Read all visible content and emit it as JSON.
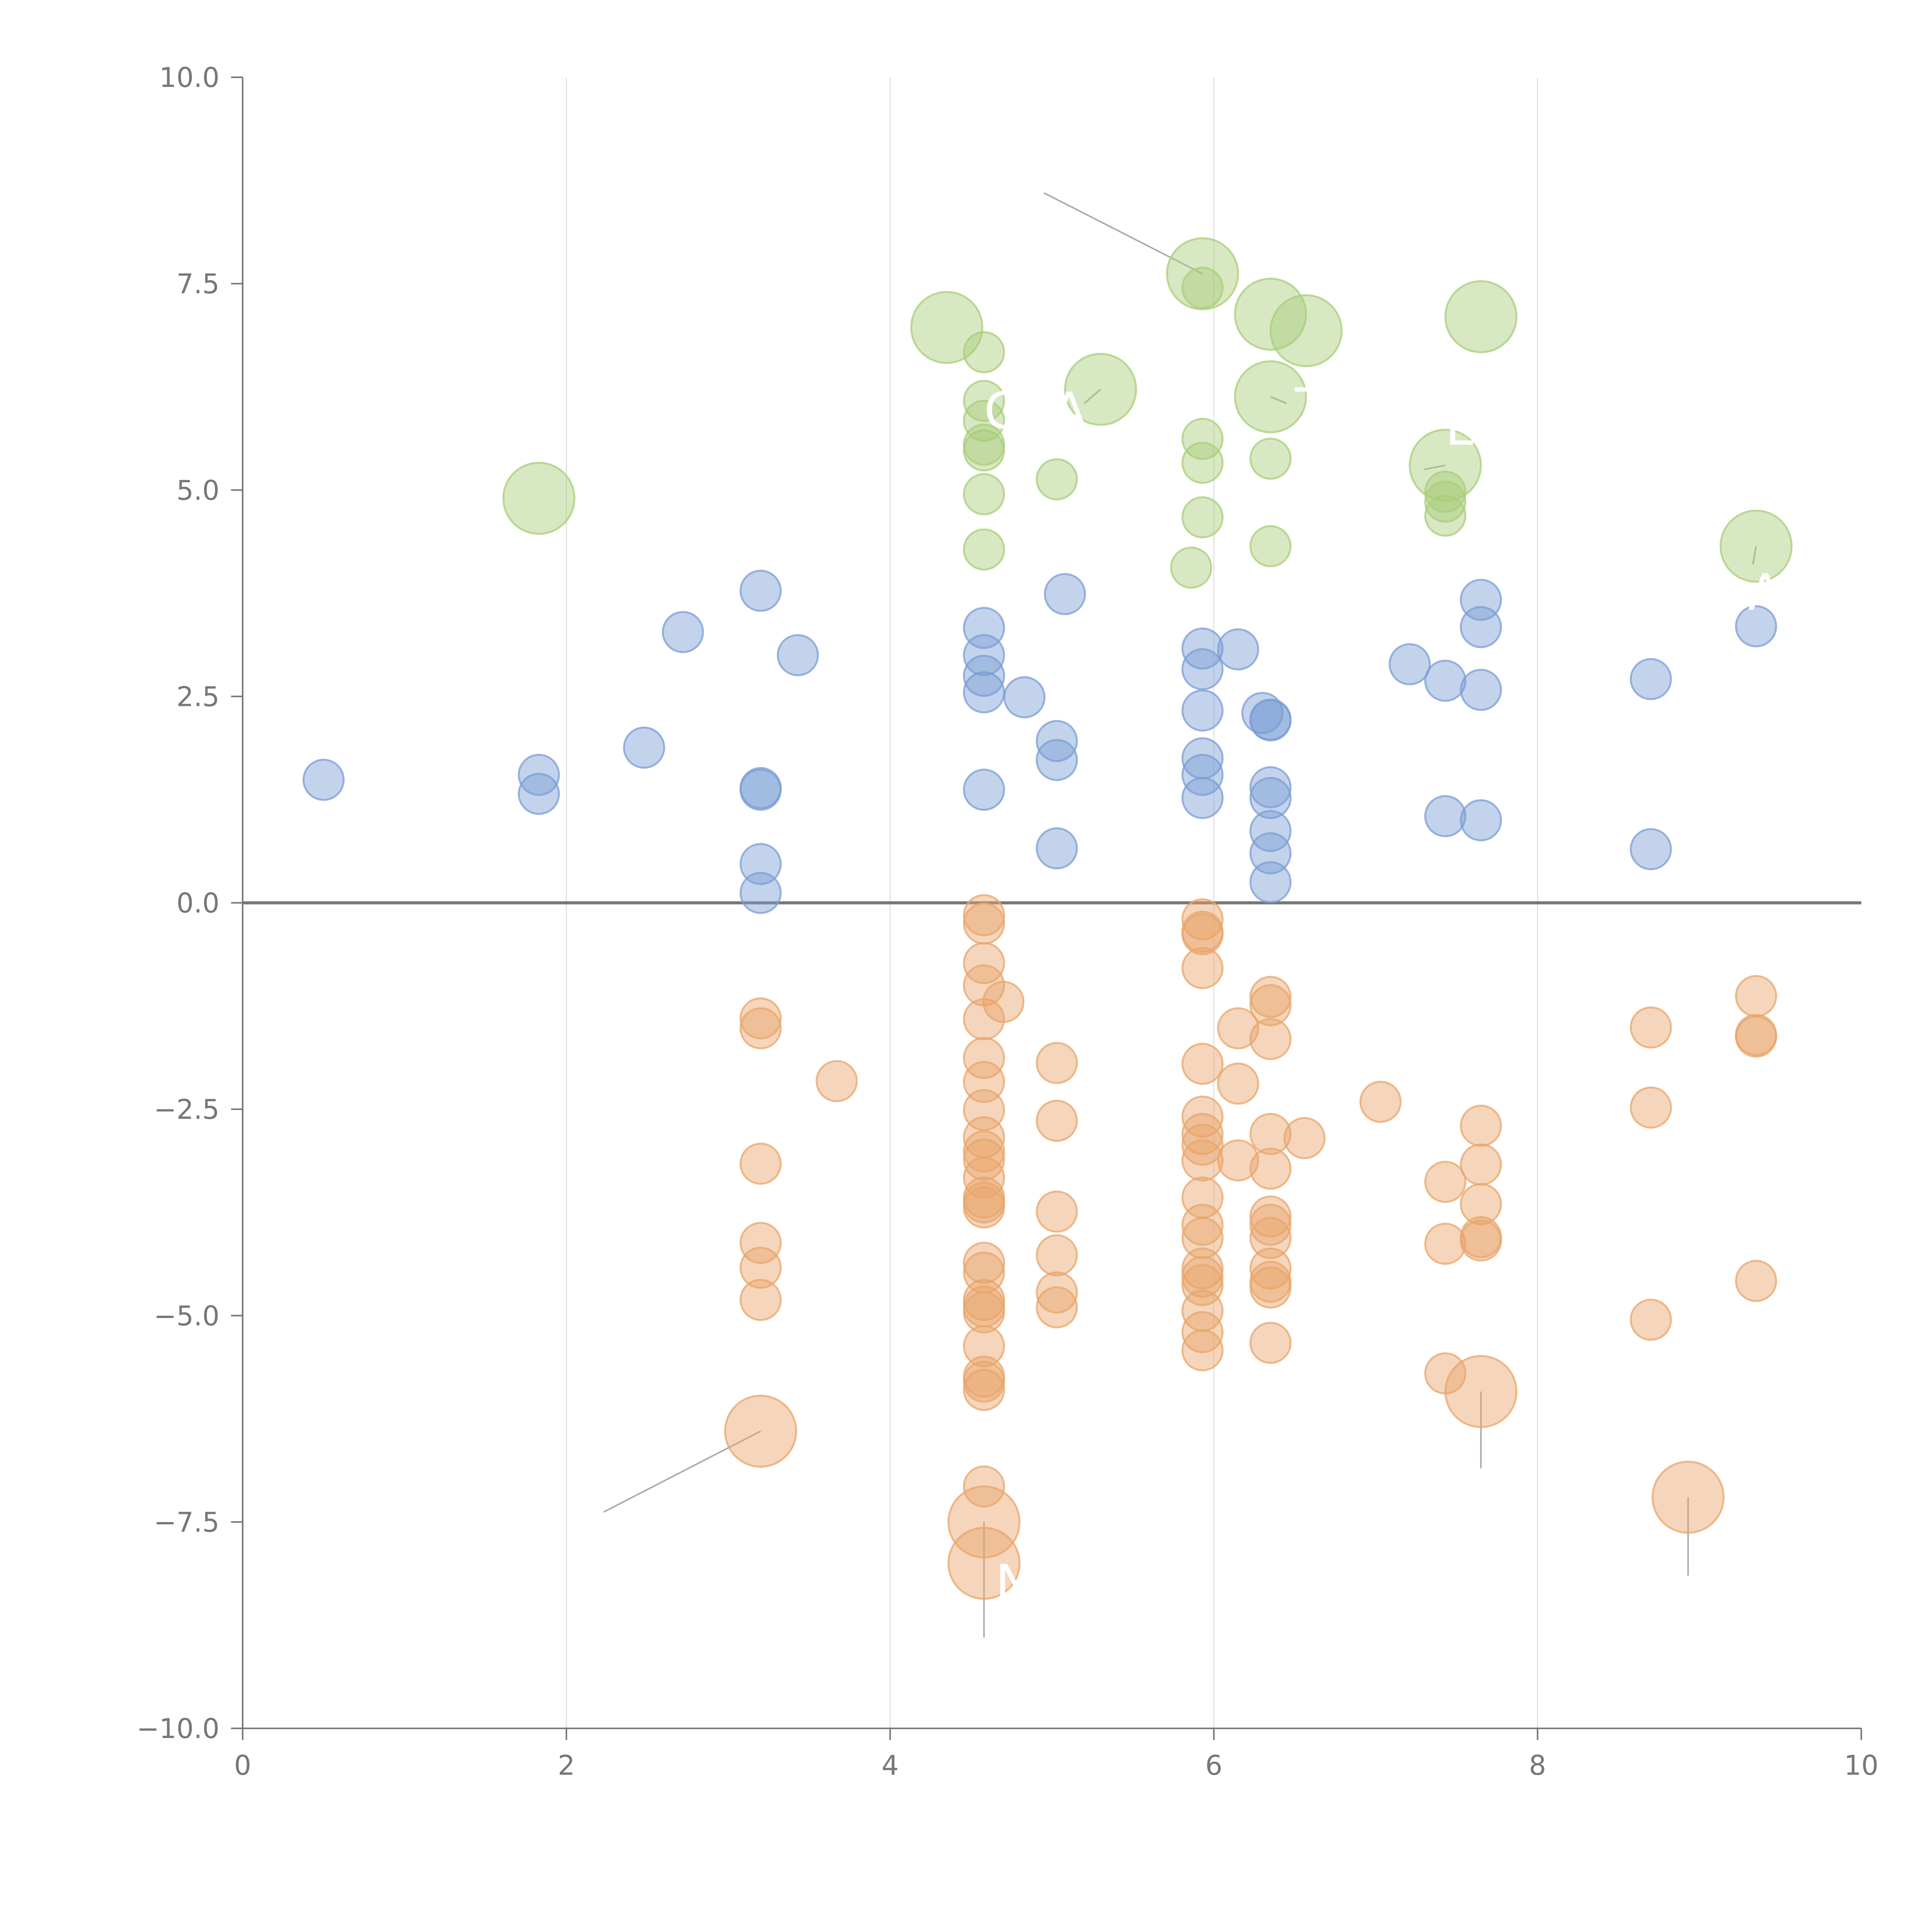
{
  "chart_data": {
    "type": "scatter",
    "title": "",
    "xlabel": "",
    "ylabel": "",
    "xlim": [
      0,
      10
    ],
    "ylim": [
      -10,
      10
    ],
    "x_ticks": [
      0,
      2,
      4,
      6,
      8,
      10
    ],
    "x_tick_labels": [
      "0",
      "2",
      "4",
      "6",
      "8",
      "10"
    ],
    "y_ticks": [
      10,
      7.5,
      5,
      2.5,
      0,
      -2.5,
      -5,
      -7.5,
      -10
    ],
    "y_tick_labels": [
      "10.0",
      "7.5",
      "5.0",
      "2.5",
      "0.0",
      "−2.5",
      "−5.0",
      "−7.5",
      "−10.0"
    ],
    "grid": "vertical",
    "zero_line": 0,
    "series": [
      {
        "name": "green",
        "color": "#a9cd7a",
        "points": [
          [
            1.83,
            4.9,
            "l"
          ],
          [
            4.35,
            6.97,
            "l"
          ],
          [
            5.3,
            6.22,
            "l"
          ],
          [
            5.93,
            7.62,
            "l"
          ],
          [
            6.35,
            7.13,
            "l"
          ],
          [
            6.57,
            6.93,
            "l"
          ],
          [
            6.35,
            6.13,
            "l"
          ],
          [
            7.65,
            7.1,
            "l"
          ],
          [
            7.43,
            5.3,
            "l"
          ],
          [
            9.35,
            4.32,
            "l"
          ],
          [
            4.58,
            6.67,
            "s"
          ],
          [
            4.58,
            6.08,
            "s"
          ],
          [
            4.58,
            5.84,
            "s"
          ],
          [
            4.58,
            5.55,
            "s"
          ],
          [
            4.58,
            5.48,
            "s"
          ],
          [
            4.58,
            4.95,
            "s"
          ],
          [
            4.58,
            4.28,
            "s"
          ],
          [
            5.03,
            5.13,
            "s"
          ],
          [
            5.93,
            7.45,
            "s"
          ],
          [
            5.93,
            5.62,
            "s"
          ],
          [
            5.93,
            5.33,
            "s"
          ],
          [
            5.93,
            4.67,
            "s"
          ],
          [
            5.86,
            4.06,
            "s"
          ],
          [
            6.35,
            5.38,
            "s"
          ],
          [
            6.35,
            4.32,
            "s"
          ],
          [
            7.43,
            4.98,
            "s"
          ],
          [
            7.43,
            4.86,
            "s"
          ],
          [
            7.43,
            4.69,
            "s"
          ]
        ]
      },
      {
        "name": "blue",
        "color": "#7b9ed4",
        "points": [
          [
            0.5,
            1.49,
            "s"
          ],
          [
            1.83,
            1.55,
            "s"
          ],
          [
            1.83,
            1.32,
            "s"
          ],
          [
            2.48,
            1.88,
            "s"
          ],
          [
            2.72,
            3.28,
            "s"
          ],
          [
            3.2,
            3.78,
            "s"
          ],
          [
            3.43,
            3.0,
            "s"
          ],
          [
            3.2,
            1.39,
            "s"
          ],
          [
            3.2,
            1.37,
            "s"
          ],
          [
            3.2,
            0.47,
            "s"
          ],
          [
            3.2,
            0.12,
            "s"
          ],
          [
            4.58,
            3.33,
            "s"
          ],
          [
            4.58,
            3.0,
            "s"
          ],
          [
            4.58,
            2.75,
            "s"
          ],
          [
            4.58,
            2.55,
            "s"
          ],
          [
            4.58,
            1.37,
            "s"
          ],
          [
            4.83,
            2.49,
            "s"
          ],
          [
            5.03,
            1.96,
            "s"
          ],
          [
            5.03,
            1.73,
            "s"
          ],
          [
            5.03,
            0.66,
            "s"
          ],
          [
            5.08,
            3.74,
            "s"
          ],
          [
            5.93,
            3.08,
            "s"
          ],
          [
            5.93,
            2.83,
            "s"
          ],
          [
            5.93,
            2.33,
            "s"
          ],
          [
            5.93,
            1.75,
            "s"
          ],
          [
            5.93,
            1.55,
            "s"
          ],
          [
            5.93,
            1.27,
            "s"
          ],
          [
            6.15,
            3.07,
            "s"
          ],
          [
            6.3,
            2.3,
            "s"
          ],
          [
            6.35,
            2.22,
            "s"
          ],
          [
            6.35,
            2.21,
            "s"
          ],
          [
            6.35,
            1.4,
            "s"
          ],
          [
            6.35,
            1.27,
            "s"
          ],
          [
            6.35,
            0.87,
            "s"
          ],
          [
            6.35,
            0.6,
            "s"
          ],
          [
            6.35,
            0.25,
            "s"
          ],
          [
            7.21,
            2.89,
            "s"
          ],
          [
            7.43,
            2.69,
            "s"
          ],
          [
            7.43,
            1.05,
            "s"
          ],
          [
            7.65,
            3.67,
            "s"
          ],
          [
            7.65,
            3.34,
            "s"
          ],
          [
            7.65,
            2.58,
            "s"
          ],
          [
            7.65,
            1.0,
            "s"
          ],
          [
            8.7,
            2.71,
            "s"
          ],
          [
            8.7,
            0.65,
            "s"
          ],
          [
            9.35,
            3.35,
            "s"
          ]
        ]
      },
      {
        "name": "orange",
        "color": "#e8a56b",
        "points": [
          [
            3.2,
            -6.4,
            "l"
          ],
          [
            4.58,
            -7.5,
            "l"
          ],
          [
            4.58,
            -8.0,
            "l"
          ],
          [
            7.65,
            -5.92,
            "l"
          ],
          [
            8.93,
            -7.2,
            "l"
          ],
          [
            3.2,
            -1.4,
            "s"
          ],
          [
            3.2,
            -1.52,
            "s"
          ],
          [
            3.2,
            -3.16,
            "s"
          ],
          [
            3.2,
            -4.12,
            "s"
          ],
          [
            3.2,
            -4.42,
            "s"
          ],
          [
            3.2,
            -4.81,
            "s"
          ],
          [
            3.67,
            -2.16,
            "s"
          ],
          [
            4.58,
            -0.15,
            "s"
          ],
          [
            4.58,
            -0.25,
            "s"
          ],
          [
            4.58,
            -0.73,
            "s"
          ],
          [
            4.58,
            -1.0,
            "s"
          ],
          [
            4.58,
            -1.41,
            "s"
          ],
          [
            4.58,
            -1.88,
            "s"
          ],
          [
            4.58,
            -2.17,
            "s"
          ],
          [
            4.58,
            -2.51,
            "s"
          ],
          [
            4.58,
            -2.84,
            "s"
          ],
          [
            4.58,
            -3.01,
            "s"
          ],
          [
            4.58,
            -3.11,
            "s"
          ],
          [
            4.58,
            -3.33,
            "s"
          ],
          [
            4.58,
            -3.57,
            "s"
          ],
          [
            4.58,
            -3.63,
            "s"
          ],
          [
            4.58,
            -3.69,
            "s"
          ],
          [
            4.58,
            -4.36,
            "s"
          ],
          [
            4.58,
            -4.48,
            "s"
          ],
          [
            4.58,
            -4.81,
            "s"
          ],
          [
            4.58,
            -4.89,
            "s"
          ],
          [
            4.58,
            -4.96,
            "s"
          ],
          [
            4.58,
            -5.37,
            "s"
          ],
          [
            4.58,
            -5.74,
            "s"
          ],
          [
            4.58,
            -5.8,
            "s"
          ],
          [
            4.58,
            -5.9,
            "s"
          ],
          [
            4.58,
            -7.07,
            "s"
          ],
          [
            4.7,
            -1.2,
            "s"
          ],
          [
            5.03,
            -1.94,
            "s"
          ],
          [
            5.03,
            -2.64,
            "s"
          ],
          [
            5.03,
            -3.74,
            "s"
          ],
          [
            5.03,
            -4.27,
            "s"
          ],
          [
            5.03,
            -4.72,
            "s"
          ],
          [
            5.03,
            -4.9,
            "s"
          ],
          [
            5.93,
            -0.2,
            "s"
          ],
          [
            5.93,
            -0.35,
            "s"
          ],
          [
            5.93,
            -0.38,
            "s"
          ],
          [
            5.93,
            -0.79,
            "s"
          ],
          [
            5.93,
            -1.95,
            "s"
          ],
          [
            5.93,
            -2.59,
            "s"
          ],
          [
            5.93,
            -2.8,
            "s"
          ],
          [
            5.93,
            -2.93,
            "s"
          ],
          [
            5.93,
            -3.12,
            "s"
          ],
          [
            5.93,
            -3.57,
            "s"
          ],
          [
            5.93,
            -3.9,
            "s"
          ],
          [
            5.93,
            -4.06,
            "s"
          ],
          [
            5.93,
            -4.43,
            "s"
          ],
          [
            5.93,
            -4.53,
            "s"
          ],
          [
            5.93,
            -4.63,
            "s"
          ],
          [
            5.93,
            -4.94,
            "s"
          ],
          [
            5.93,
            -5.2,
            "s"
          ],
          [
            5.93,
            -5.42,
            "s"
          ],
          [
            6.15,
            -1.52,
            "s"
          ],
          [
            6.15,
            -2.19,
            "s"
          ],
          [
            6.15,
            -3.12,
            "s"
          ],
          [
            6.35,
            -1.14,
            "s"
          ],
          [
            6.35,
            -1.24,
            "s"
          ],
          [
            6.35,
            -1.65,
            "s"
          ],
          [
            6.35,
            -2.8,
            "s"
          ],
          [
            6.35,
            -3.22,
            "s"
          ],
          [
            6.35,
            -3.8,
            "s"
          ],
          [
            6.35,
            -3.9,
            "s"
          ],
          [
            6.35,
            -4.06,
            "s"
          ],
          [
            6.35,
            -4.43,
            "s"
          ],
          [
            6.35,
            -4.59,
            "s"
          ],
          [
            6.35,
            -4.66,
            "s"
          ],
          [
            6.35,
            -5.33,
            "s"
          ],
          [
            6.56,
            -2.85,
            "s"
          ],
          [
            7.03,
            -2.41,
            "s"
          ],
          [
            7.43,
            -3.38,
            "s"
          ],
          [
            7.43,
            -4.13,
            "s"
          ],
          [
            7.43,
            -5.7,
            "s"
          ],
          [
            7.65,
            -2.7,
            "s"
          ],
          [
            7.65,
            -3.17,
            "s"
          ],
          [
            7.65,
            -3.65,
            "s"
          ],
          [
            7.65,
            -4.05,
            "s"
          ],
          [
            7.65,
            -4.09,
            "s"
          ],
          [
            8.7,
            -1.51,
            "s"
          ],
          [
            8.7,
            -2.48,
            "s"
          ],
          [
            8.7,
            -5.05,
            "s"
          ],
          [
            9.35,
            -1.13,
            "s"
          ],
          [
            9.35,
            -1.6,
            "s"
          ],
          [
            9.35,
            -1.62,
            "s"
          ],
          [
            9.35,
            -4.58,
            "s"
          ]
        ]
      }
    ],
    "callouts": [
      {
        "text": "C",
        "x": 4.58,
        "y": 5.75,
        "line": [
          [
            5.3,
            6.22
          ],
          [
            5.2,
            6.05
          ]
        ]
      },
      {
        "text": "A",
        "x": 5.0,
        "y": 5.75,
        "line": [
          [
            5.93,
            7.62
          ],
          [
            4.95,
            8.6
          ]
        ]
      },
      {
        "text": "T",
        "x": 6.5,
        "y": 5.8,
        "line": [
          [
            6.35,
            6.13
          ],
          [
            6.45,
            6.05
          ]
        ]
      },
      {
        "text": "L",
        "x": 7.43,
        "y": 5.55,
        "line": [
          [
            7.43,
            5.3
          ],
          [
            7.3,
            5.25
          ]
        ]
      },
      {
        "text": "A",
        "x": 9.3,
        "y": 3.55,
        "line": [
          [
            9.35,
            4.32
          ],
          [
            9.33,
            4.1
          ]
        ]
      },
      {
        "text": "N",
        "x": 4.65,
        "y": -8.45,
        "line": [
          [
            4.58,
            -7.5
          ],
          [
            4.58,
            -8.9
          ]
        ]
      }
    ],
    "leader_lines": [
      [
        [
          3.2,
          -6.4
        ],
        [
          2.23,
          -7.38
        ]
      ],
      [
        [
          7.65,
          -5.92
        ],
        [
          7.65,
          -6.85
        ]
      ],
      [
        [
          8.93,
          -7.2
        ],
        [
          8.93,
          -8.15
        ]
      ]
    ]
  }
}
